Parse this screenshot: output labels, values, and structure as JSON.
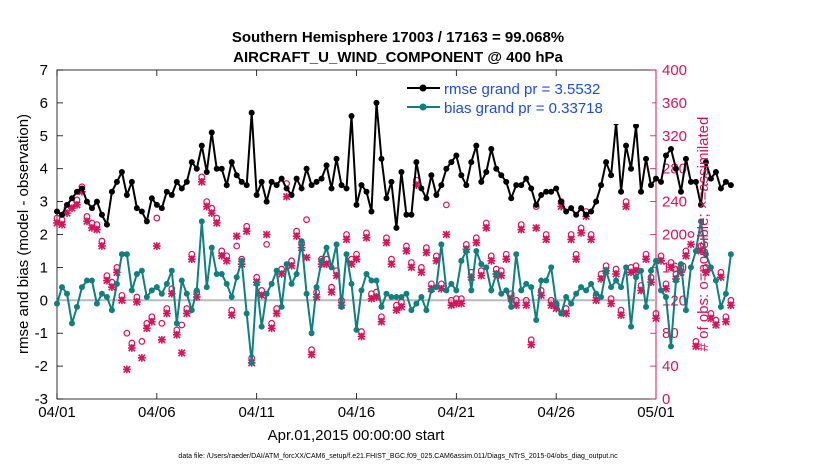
{
  "chart_data": {
    "type": "line",
    "title": "Southern Hemisphere 17003 / 17163 = 99.068%",
    "subtitle": "AIRCRAFT_U_WIND_COMPONENT @ 400 hPa",
    "xlabel": "Apr.01,2015 00:00:00 start",
    "ylabel_left": "rmse and bias (model - observation)",
    "ylabel_right": "# of obs: o=possible; ×=assimilated",
    "x_tick_labels": [
      "04/01",
      "04/06",
      "04/11",
      "04/16",
      "04/21",
      "04/26",
      "05/01"
    ],
    "x_tick_days": [
      0,
      5,
      10,
      15,
      20,
      25,
      30
    ],
    "xlim": [
      0,
      30
    ],
    "ylim_left": [
      -3,
      7
    ],
    "y_ticks_left": [
      -3,
      -2,
      -1,
      0,
      1,
      2,
      3,
      4,
      5,
      6,
      7
    ],
    "ylim_right": [
      0,
      400
    ],
    "y_ticks_right": [
      0,
      40,
      80,
      120,
      160,
      200,
      240,
      280,
      320,
      360,
      400
    ],
    "step_days": 0.25,
    "series": [
      {
        "name": "rmse",
        "legend": "rmse grand pr = 3.5532",
        "color": "#000000",
        "axis": "left",
        "values": [
          2.7,
          2.6,
          2.9,
          3.1,
          3.3,
          3.4,
          3.0,
          2.8,
          3.0,
          2.6,
          2.3,
          3.3,
          3.6,
          3.9,
          3.2,
          3.6,
          2.8,
          2.7,
          2.4,
          3.1,
          2.9,
          2.8,
          3.3,
          3.2,
          3.6,
          3.4,
          3.6,
          4.2,
          4.0,
          4.7,
          3.9,
          5.1,
          4.0,
          4.0,
          3.5,
          4.2,
          3.8,
          3.6,
          3.5,
          5.7,
          3.2,
          3.6,
          3.0,
          3.6,
          3.5,
          3.7,
          3.4,
          3.2,
          3.7,
          3.4,
          4.0,
          3.5,
          3.6,
          3.7,
          4.1,
          3.4,
          4.3,
          3.5,
          3.4,
          5.6,
          2.9,
          3.5,
          3.3,
          2.7,
          6.0,
          4.3,
          3.1,
          3.6,
          2.2,
          3.9,
          2.6,
          2.6,
          4.2,
          3.4,
          3.1,
          3.8,
          3.2,
          3.5,
          4.0,
          4.2,
          4.4,
          3.8,
          3.5,
          4.2,
          4.7,
          3.6,
          3.9,
          4.6,
          4.0,
          3.8,
          3.6,
          3.1,
          3.5,
          3.5,
          3.7,
          3.4,
          2.9,
          3.2,
          3.3,
          3.3,
          3.4,
          3.0,
          2.7,
          2.8,
          2.6,
          2.8,
          2.6,
          2.7,
          3.0,
          3.5,
          4.2,
          3.8,
          5.4,
          3.3,
          4.7,
          4.0,
          5.3,
          3.3,
          4.3,
          3.5,
          3.7,
          3.6,
          4.4,
          4.6,
          4.0,
          3.3,
          4.3,
          3.6,
          3.6,
          2.9,
          4.2,
          3.7,
          3.9,
          3.4,
          3.6,
          3.5
        ]
      },
      {
        "name": "bias",
        "legend": "bias grand pr = 0.33718",
        "color": "#0f7f7f",
        "axis": "left",
        "values": [
          -0.1,
          0.4,
          0.2,
          -0.7,
          -0.2,
          0.4,
          0.6,
          0.6,
          -0.1,
          0.2,
          0.1,
          -0.3,
          0.5,
          1.4,
          1.4,
          0.3,
          0.8,
          0.9,
          0.1,
          0.3,
          0.4,
          0.2,
          0.5,
          0.9,
          -0.7,
          0.6,
          0.2,
          -0.3,
          0.3,
          2.4,
          0.4,
          1.6,
          0.8,
          0.8,
          0.5,
          0.1,
          0.7,
          1.2,
          -0.4,
          -1.9,
          0.5,
          -0.8,
          0.2,
          0.5,
          0.9,
          -0.2,
          1.1,
          0.5,
          0.8,
          1.8,
          0.2,
          -1.0,
          0.4,
          1.2,
          1.6,
          1.0,
          1.7,
          -0.2,
          1.4,
          0.5,
          -0.9,
          0.3,
          0.8,
          0.6,
          0.6,
          -0.2,
          0.2,
          0.1,
          0.1,
          0.1,
          0.2,
          -0.3,
          -0.1,
          0.1,
          -0.3,
          0.3,
          0.4,
          1.7,
          0.3,
          0.5,
          0.3,
          1.2,
          1.5,
          0.3,
          1.5,
          1.1,
          1.0,
          0.3,
          0.8,
          0.2,
          0.3,
          -0.2,
          1.4,
          0.3,
          0.5,
          0.4,
          -0.6,
          0.6,
          0.6,
          1.0,
          -0.1,
          -0.4,
          0.1,
          -0.1,
          0.2,
          0.4,
          0.3,
          0.5,
          0.2,
          0.1,
          0.9,
          0.4,
          0.6,
          0.4,
          1.0,
          -0.8,
          0.7,
          0.9,
          -0.2,
          0.9,
          1.2,
          0.3,
          0.1,
          -1.4,
          0.6,
          1.1,
          -0.3,
          1.0,
          1.5,
          2.4,
          1.4,
          1.0,
          0.6,
          -0.2,
          0.2,
          1.4
        ]
      },
      {
        "name": "obs_possible",
        "marker": "o",
        "color": "#d6145c",
        "axis": "right",
        "values": [
          220,
          218,
          232,
          238,
          242,
          258,
          222,
          214,
          212,
          192,
          150,
          142,
          160,
          126,
          80,
          68,
          124,
          70,
          92,
          100,
          220,
          92,
          110,
          134,
          84,
          90,
          110,
          176,
          130,
          270,
          240,
          232,
          220,
          180,
          174,
          108,
          186,
          170,
          210,
          50,
          148,
          132,
          188,
          92,
          110,
          158,
          262,
          168,
          204,
          190,
          218,
          60,
          130,
          170,
          170,
          136,
          156,
          120,
          200,
          170,
          176,
          82,
          202,
          128,
          130,
          100,
          196,
          170,
          114,
          118,
          186,
          166,
          266,
          160,
          184,
          140,
          174,
          140,
          236,
          120,
          122,
          122,
          188,
          154,
          196,
          156,
          214,
          174,
          158,
          156,
          176,
          128,
          120,
          212,
          120,
          72,
          234,
          132,
          200,
          120,
          116,
          240,
          110,
          200,
          176,
          208,
          228,
          200,
          126,
          152,
          162,
          122,
          158,
          108,
          240,
          160,
          162,
          138,
          176,
          148,
          104,
          174,
          140,
          166,
          152,
          160,
          180,
          200,
          70,
          186,
          160,
          104,
          96,
          154,
          100,
          120
        ]
      },
      {
        "name": "obs_assimilated",
        "marker": "x",
        "color": "#d6145c",
        "axis": "right",
        "values": [
          214,
          212,
          226,
          232,
          236,
          252,
          216,
          208,
          206,
          186,
          144,
          136,
          154,
          120,
          36,
          62,
          118,
          50,
          86,
          94,
          186,
          72,
          104,
          128,
          78,
          56,
          104,
          170,
          124,
          264,
          234,
          226,
          214,
          174,
          168,
          102,
          198,
          164,
          204,
          44,
          142,
          126,
          200,
          86,
          104,
          152,
          246,
          162,
          198,
          184,
          172,
          54,
          124,
          164,
          164,
          130,
          150,
          114,
          194,
          164,
          170,
          76,
          196,
          122,
          124,
          94,
          190,
          164,
          108,
          112,
          180,
          160,
          260,
          154,
          178,
          134,
          168,
          134,
          200,
          114,
          116,
          116,
          182,
          148,
          190,
          150,
          208,
          168,
          152,
          150,
          170,
          122,
          114,
          206,
          114,
          66,
          208,
          126,
          194,
          114,
          110,
          234,
          104,
          194,
          170,
          202,
          222,
          194,
          120,
          146,
          156,
          116,
          152,
          102,
          234,
          154,
          156,
          132,
          170,
          142,
          98,
          168,
          134,
          160,
          146,
          154,
          174,
          188,
          64,
          180,
          154,
          98,
          90,
          148,
          94,
          114
        ]
      }
    ],
    "footer": "data file: /Users/raeder/DAI/ATM_forcXX/CAM6_setup/f.e21.FHIST_BGC.f09_025.CAM6assim.011/Diags_NTrS_2015-04/obs_diag_output.nc"
  }
}
